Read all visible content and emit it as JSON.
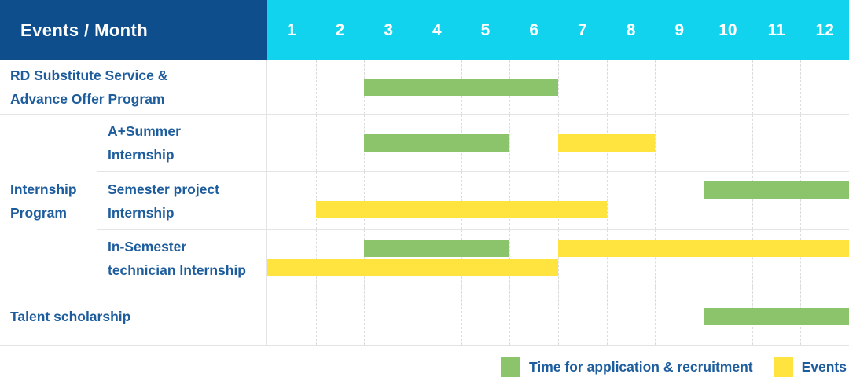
{
  "header": {
    "title": "Events / Month",
    "months": [
      "1",
      "2",
      "3",
      "4",
      "5",
      "6",
      "7",
      "8",
      "9",
      "10",
      "11",
      "12"
    ]
  },
  "rows": {
    "rd": {
      "label_lines": [
        "RD Substitute Service &",
        "Advance Offer Program"
      ]
    },
    "internship_group": {
      "label_lines": [
        "Internship",
        "Program"
      ]
    },
    "a_summer": {
      "label_lines": [
        "A+Summer",
        "Internship"
      ]
    },
    "semester_project": {
      "label_lines": [
        "Semester project",
        "Internship"
      ]
    },
    "in_semester": {
      "label_lines": [
        "In-Semester",
        "technician Internship"
      ]
    },
    "talent": {
      "label_lines": [
        "Talent scholarship"
      ]
    }
  },
  "legend": {
    "recruitment_label": "Time for application & recruitment",
    "events_label": "Events"
  },
  "colors": {
    "header_bg": "#0f4e8c",
    "months_bg": "#12d3ed",
    "text_blue": "#1d5d9d",
    "recruitment_green": "#8bc46a",
    "events_yellow": "#ffe33f",
    "grid_line": "#e4e4e4"
  },
  "chart_data": {
    "type": "gantt",
    "x_unit": "month",
    "x_range": [
      1,
      12
    ],
    "title": "Events / Month",
    "legend": {
      "recruitment": "Time for application & recruitment",
      "events": "Events"
    },
    "rows": [
      {
        "id": "rd",
        "label": "RD Substitute Service & Advance Offer Program",
        "lines": [
          [
            {
              "type": "recruitment",
              "start": 3,
              "end": 6
            }
          ]
        ]
      },
      {
        "id": "a_summer",
        "group": "Internship Program",
        "label": "A+Summer Internship",
        "lines": [
          [
            {
              "type": "recruitment",
              "start": 3,
              "end": 5
            },
            {
              "type": "events",
              "start": 7,
              "end": 8
            }
          ]
        ]
      },
      {
        "id": "semester_project",
        "group": "Internship Program",
        "label": "Semester project Internship",
        "lines": [
          [
            {
              "type": "recruitment",
              "start": 10,
              "end": 12
            }
          ],
          [
            {
              "type": "events",
              "start": 2,
              "end": 7
            }
          ]
        ]
      },
      {
        "id": "in_semester",
        "group": "Internship Program",
        "label": "In-Semester technician Internship",
        "lines": [
          [
            {
              "type": "recruitment",
              "start": 3,
              "end": 5
            },
            {
              "type": "events",
              "start": 7,
              "end": 12
            }
          ],
          [
            {
              "type": "events",
              "start": 1,
              "end": 6
            }
          ]
        ]
      },
      {
        "id": "talent",
        "label": "Talent scholarship",
        "lines": [
          [
            {
              "type": "recruitment",
              "start": 10,
              "end": 12
            }
          ]
        ]
      }
    ]
  }
}
